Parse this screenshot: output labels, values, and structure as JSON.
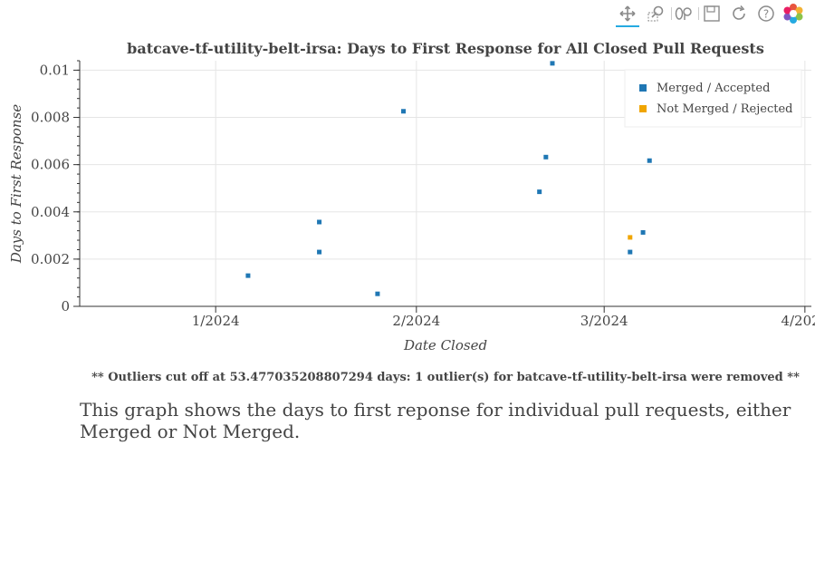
{
  "toolbar": {
    "tools": [
      "pan-icon",
      "box-zoom-icon",
      "wheel-zoom-icon",
      "save-icon",
      "reset-icon",
      "help-icon",
      "bokeh-logo-icon"
    ],
    "active": "pan-icon"
  },
  "chart_data": {
    "type": "scatter",
    "title": "batcave-tf-utility-belt-irsa: Days to First Response for All Closed Pull Requests",
    "xlabel": "Date Closed",
    "ylabel": "Days to First Response",
    "xlim": [
      "2023-12-11",
      "2024-04-02"
    ],
    "ylim": [
      0,
      0.0104
    ],
    "x_ticks": [
      "2024-01-01",
      "2024-02-01",
      "2024-03-01",
      "2024-04-01"
    ],
    "x_tick_labels": [
      "1/2024",
      "2/2024",
      "3/2024",
      "4/2024"
    ],
    "y_ticks": [
      0,
      0.002,
      0.004,
      0.006,
      0.008,
      0.01
    ],
    "y_tick_labels": [
      "0",
      "0.002",
      "0.004",
      "0.006",
      "0.008",
      "0.01"
    ],
    "grid": true,
    "legend_position": "top-right",
    "series": [
      {
        "name": "Merged / Accepted",
        "color": "#1f77b4",
        "points": [
          {
            "x": "2024-01-06",
            "y": 0.0013
          },
          {
            "x": "2024-01-17",
            "y": 0.00357
          },
          {
            "x": "2024-01-17",
            "y": 0.0023
          },
          {
            "x": "2024-01-26",
            "y": 0.00053
          },
          {
            "x": "2024-01-30",
            "y": 0.00826
          },
          {
            "x": "2024-02-20",
            "y": 0.00485
          },
          {
            "x": "2024-02-21",
            "y": 0.00632
          },
          {
            "x": "2024-02-22",
            "y": 0.01029
          },
          {
            "x": "2024-03-05",
            "y": 0.0023
          },
          {
            "x": "2024-03-07",
            "y": 0.00313
          },
          {
            "x": "2024-03-08",
            "y": 0.00617
          }
        ]
      },
      {
        "name": "Not Merged / Rejected",
        "color": "#f0a500",
        "points": [
          {
            "x": "2024-03-05",
            "y": 0.00292
          }
        ]
      }
    ]
  },
  "note": "** Outliers cut off at 53.477035208807294 days: 1 outlier(s) for batcave-tf-utility-belt-irsa were removed **",
  "description": "This graph shows the days to first reponse for individual pull requests, either Merged or Not Merged."
}
